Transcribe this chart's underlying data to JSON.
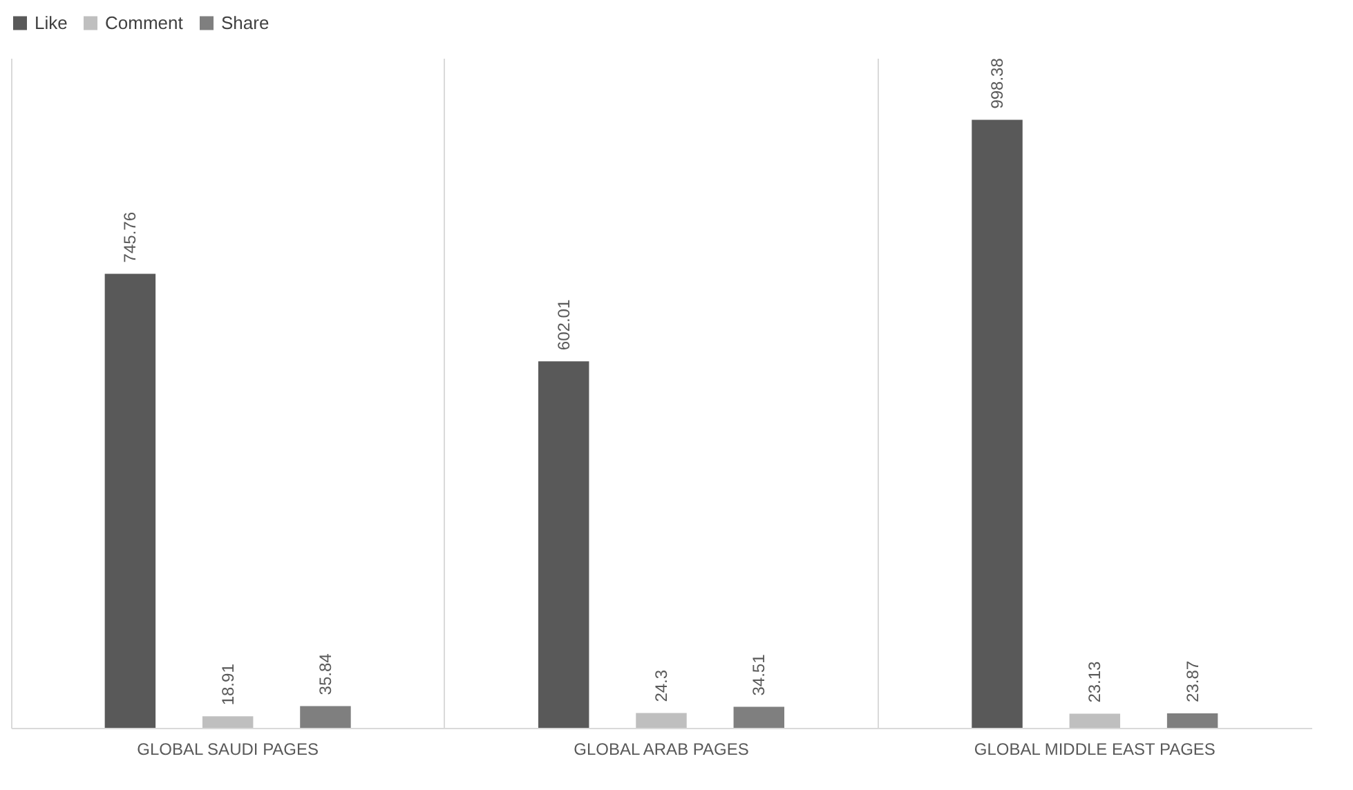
{
  "chart_data": {
    "type": "bar",
    "categories": [
      "GLOBAL SAUDI PAGES",
      "GLOBAL ARAB PAGES",
      "GLOBAL MIDDLE EAST PAGES"
    ],
    "series": [
      {
        "name": "Like",
        "color": "#595959",
        "values": [
          745.76,
          602.01,
          998.38
        ]
      },
      {
        "name": "Comment",
        "color": "#bfbfbf",
        "values": [
          18.91,
          24.3,
          23.13
        ]
      },
      {
        "name": "Share",
        "color": "#7f7f7f",
        "values": [
          35.84,
          34.51,
          23.87
        ]
      }
    ],
    "ylim": [
      0,
      1100
    ],
    "data_labels": true,
    "grid": "x",
    "legend": "top",
    "tick_labels": "x"
  }
}
